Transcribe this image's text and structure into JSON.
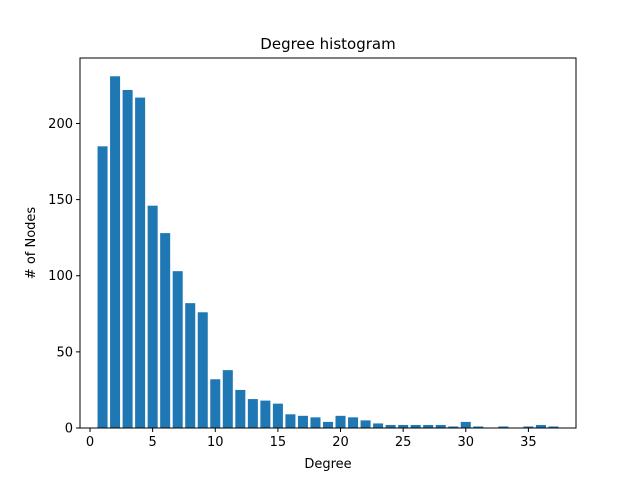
{
  "chart_data": {
    "type": "bar",
    "title": "Degree histogram",
    "xlabel": "Degree",
    "ylabel": "# of Nodes",
    "xlim": [
      -0.8,
      38.8
    ],
    "ylim": [
      0,
      243
    ],
    "x_ticks": [
      0,
      5,
      10,
      15,
      20,
      25,
      30,
      35
    ],
    "y_ticks": [
      0,
      50,
      100,
      150,
      200
    ],
    "grid": false,
    "bar_color": "#1f77b4",
    "x": [
      1,
      2,
      3,
      4,
      5,
      6,
      7,
      8,
      9,
      10,
      11,
      12,
      13,
      14,
      15,
      16,
      17,
      18,
      19,
      20,
      21,
      22,
      23,
      24,
      25,
      26,
      27,
      28,
      29,
      30,
      31,
      33,
      35,
      36,
      37
    ],
    "values": [
      185,
      231,
      222,
      217,
      146,
      128,
      103,
      82,
      76,
      32,
      38,
      25,
      19,
      18,
      16,
      9,
      8,
      7,
      4,
      8,
      7,
      5,
      3,
      2,
      2,
      2,
      2,
      2,
      1,
      4,
      1,
      1,
      1,
      2,
      1
    ]
  }
}
